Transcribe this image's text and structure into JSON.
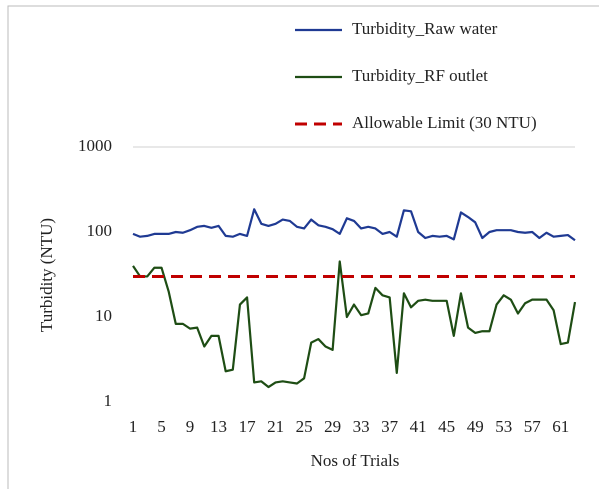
{
  "chart_data": {
    "type": "line",
    "ylabel": "Turbidity (NTU)",
    "xlabel": "Nos of Trials",
    "categories": [
      1,
      null,
      null,
      null,
      5,
      null,
      null,
      null,
      9,
      null,
      null,
      null,
      13,
      null,
      null,
      null,
      17,
      null,
      null,
      null,
      21,
      null,
      null,
      null,
      25,
      null,
      null,
      null,
      29,
      null,
      null,
      null,
      33,
      null,
      null,
      null,
      37,
      null,
      null,
      null,
      41,
      null,
      null,
      null,
      45,
      null,
      null,
      null,
      49,
      null,
      null,
      null,
      53,
      null,
      null,
      null,
      57,
      null,
      null,
      null,
      61,
      null,
      null
    ],
    "series": [
      {
        "name": "Turbidity_Raw water",
        "color": "#1f3a93",
        "dash": false,
        "values": [
          95,
          88,
          90,
          95,
          95,
          95,
          100,
          98,
          105,
          115,
          118,
          112,
          118,
          90,
          88,
          95,
          90,
          185,
          125,
          118,
          125,
          140,
          135,
          115,
          110,
          140,
          120,
          115,
          108,
          95,
          145,
          135,
          110,
          115,
          110,
          95,
          100,
          88,
          180,
          175,
          100,
          85,
          90,
          88,
          90,
          82,
          170,
          150,
          130,
          85,
          100,
          105,
          105,
          105,
          100,
          98,
          100,
          85,
          98,
          88,
          90,
          92,
          80
        ]
      },
      {
        "name": "Turbidity_RF outlet",
        "color": "#1e4d14",
        "dash": false,
        "values": [
          40,
          30,
          30,
          38,
          38,
          20,
          8.3,
          8.3,
          7.3,
          7.5,
          4.5,
          6,
          6,
          2.3,
          2.4,
          14,
          17,
          1.7,
          1.75,
          1.5,
          1.7,
          1.75,
          1.7,
          1.65,
          1.9,
          5,
          5.5,
          4.5,
          4.1,
          45,
          10,
          14,
          10.5,
          11,
          22,
          18,
          17,
          2.2,
          19,
          13,
          15.5,
          16,
          15.5,
          15.5,
          15.5,
          6,
          19,
          7.5,
          6.5,
          6.8,
          6.8,
          14,
          18,
          16,
          11,
          14.5,
          16,
          16,
          16,
          12,
          4.8,
          5,
          15
        ]
      },
      {
        "name": "Allowable Limit (30 NTU)",
        "color": "#c00000",
        "dash": true,
        "values": [
          30,
          30,
          30,
          30,
          30,
          30,
          30,
          30,
          30,
          30,
          30,
          30,
          30,
          30,
          30,
          30,
          30,
          30,
          30,
          30,
          30,
          30,
          30,
          30,
          30,
          30,
          30,
          30,
          30,
          30,
          30,
          30,
          30,
          30,
          30,
          30,
          30,
          30,
          30,
          30,
          30,
          30,
          30,
          30,
          30,
          30,
          30,
          30,
          30,
          30,
          30,
          30,
          30,
          30,
          30,
          30,
          30,
          30,
          30,
          30,
          30,
          30,
          30
        ]
      }
    ],
    "log_y": true,
    "ylim": [
      1,
      1000
    ],
    "yticks": [
      1,
      10,
      100,
      1000
    ],
    "legend": "top"
  }
}
